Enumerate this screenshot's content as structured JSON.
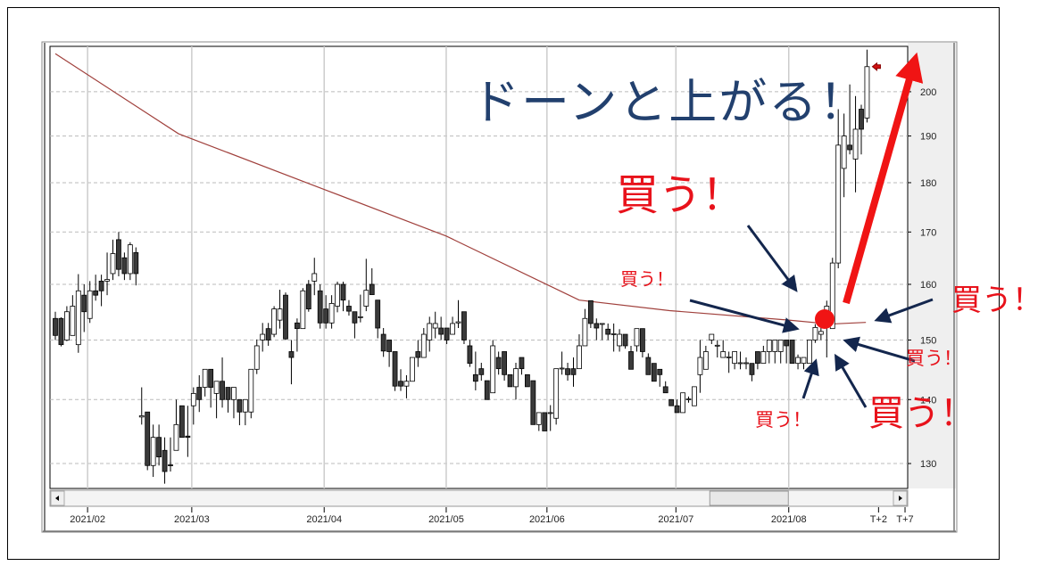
{
  "annotations": {
    "headline": "ドーンと上がる！",
    "buy_labels": [
      "買う！",
      "買う！",
      "買う！",
      "買う！",
      "買う！",
      "買う！"
    ]
  },
  "colors": {
    "headline": "#22406e",
    "buy_text": "#e8121b",
    "arrows_navy": "#13264d",
    "big_arrow": "#f01414",
    "marker_dot": "#f01414",
    "moving_average": "#a0403c",
    "candle_up": "#ffffff",
    "candle_down": "#3a3a3a"
  },
  "chart_data": {
    "type": "candlestick",
    "title": "",
    "y_scale": "log",
    "ylim": [
      126.3,
      210.8
    ],
    "y_ticks": [
      130,
      140,
      150,
      160,
      170,
      180,
      190,
      200
    ],
    "y_axis_side": "right",
    "grid": {
      "horizontal": "dashed",
      "vertical": "solid-at-month-ticks"
    },
    "x_ticks": [
      {
        "label": "2021/02",
        "index": 5.6
      },
      {
        "label": "2021/03",
        "index": 23.7
      },
      {
        "label": "2021/04",
        "index": 46.7
      },
      {
        "label": "2021/05",
        "index": 67.9
      },
      {
        "label": "2021/06",
        "index": 85.4
      },
      {
        "label": "2021/07",
        "index": 107.8
      },
      {
        "label": "2021/08",
        "index": 127.4
      },
      {
        "label": "T+2",
        "index": 143.0
      },
      {
        "label": "T+7",
        "index": 147.6
      }
    ],
    "ohlc_fields": [
      "open",
      "high",
      "low",
      "close"
    ],
    "candles": [
      [
        153.8,
        155,
        150,
        150.8
      ],
      [
        153.8,
        154,
        148.9,
        149.2
      ],
      [
        150,
        156,
        149.8,
        155
      ],
      [
        150.8,
        158,
        150.8,
        156
      ],
      [
        149.2,
        161.9,
        147.8,
        158.8
      ],
      [
        158,
        160,
        151.4,
        155
      ],
      [
        153.8,
        160.6,
        153,
        158.8
      ],
      [
        158.8,
        161.8,
        157,
        158
      ],
      [
        160.6,
        161.8,
        156,
        158.8
      ],
      [
        160.6,
        166,
        158,
        160.9
      ],
      [
        162,
        168.5,
        160.8,
        165.8
      ],
      [
        168.5,
        170,
        161.5,
        162.8
      ],
      [
        165,
        166,
        160.8,
        162
      ],
      [
        162,
        168,
        160.8,
        167.5
      ],
      [
        166,
        167,
        159.8,
        162
      ],
      [
        137.2,
        142,
        136,
        137.4
      ],
      [
        138,
        138,
        129,
        129.7
      ],
      [
        129.7,
        136,
        128,
        134
      ],
      [
        134,
        136,
        129.7,
        131
      ],
      [
        132,
        134,
        127,
        128.8
      ],
      [
        129.8,
        134,
        128.8,
        129.7
      ],
      [
        132,
        140,
        132,
        136
      ],
      [
        139,
        139,
        134,
        134
      ],
      [
        134.2,
        139,
        131,
        134
      ],
      [
        139,
        142,
        136,
        141
      ],
      [
        142,
        144,
        138,
        140
      ],
      [
        142,
        145,
        140.5,
        145
      ],
      [
        145,
        145,
        138.7,
        142
      ],
      [
        141,
        143,
        137,
        143
      ],
      [
        143,
        147,
        138.7,
        140
      ],
      [
        142,
        142,
        137.9,
        140
      ],
      [
        140,
        142,
        137,
        142
      ],
      [
        140,
        140,
        135.9,
        138
      ],
      [
        138,
        140,
        135.9,
        140
      ],
      [
        138,
        145,
        137,
        145
      ],
      [
        145,
        150.1,
        144.2,
        149
      ],
      [
        150,
        153,
        148,
        151
      ],
      [
        152,
        153,
        149,
        150
      ],
      [
        151,
        156,
        150.5,
        155.5
      ],
      [
        153.5,
        159,
        152,
        155.5
      ],
      [
        158,
        158.5,
        150,
        150.2
      ],
      [
        148,
        150,
        142.5,
        147
      ],
      [
        153,
        153.8,
        148,
        152
      ],
      [
        152,
        159.3,
        152,
        158.8
      ],
      [
        160,
        160.8,
        155,
        155.5
      ],
      [
        160.6,
        165,
        158,
        162
      ],
      [
        158.8,
        160,
        152,
        153
      ],
      [
        155.5,
        158,
        152,
        153
      ],
      [
        153,
        158,
        152,
        156.5
      ],
      [
        156,
        160.5,
        154.9,
        160
      ],
      [
        160,
        160.5,
        155.1,
        157.1
      ],
      [
        156,
        157.1,
        154.3,
        155.1
      ],
      [
        155,
        155,
        150.3,
        153
      ],
      [
        154,
        158.1,
        153.1,
        154.1
      ],
      [
        156,
        164.8,
        155.1,
        158.9
      ],
      [
        160,
        163,
        158.1,
        158.1
      ],
      [
        157.1,
        157.1,
        150.3,
        152.1
      ],
      [
        151,
        152.1,
        147.1,
        148.1
      ],
      [
        150,
        150,
        145.4,
        148
      ],
      [
        148,
        148,
        141.4,
        142.2
      ],
      [
        143,
        145,
        141.4,
        142.2
      ],
      [
        142.2,
        144,
        140.2,
        143
      ],
      [
        143,
        147,
        143,
        147
      ],
      [
        148,
        150,
        145.4,
        147
      ],
      [
        147,
        152.1,
        147,
        151
      ],
      [
        150,
        154.1,
        148,
        152.9
      ],
      [
        152.1,
        155,
        150.3,
        152.9
      ],
      [
        152.1,
        154.1,
        150,
        151
      ],
      [
        152.1,
        152.1,
        149.3,
        150
      ],
      [
        151,
        154.1,
        151,
        152.9
      ],
      [
        153,
        157.1,
        152.1,
        153.2
      ],
      [
        155,
        155,
        149.3,
        150
      ],
      [
        149,
        150,
        145.4,
        146
      ],
      [
        144.1,
        148,
        141.5,
        143
      ],
      [
        145.1,
        146.1,
        143.1,
        144.1
      ],
      [
        143.1,
        143.1,
        140,
        140
      ],
      [
        141.1,
        150,
        141.1,
        149
      ],
      [
        147,
        148,
        144.1,
        145.1
      ],
      [
        148,
        148,
        143.1,
        144.1
      ],
      [
        144.1,
        144.1,
        142.1,
        142.1
      ],
      [
        142.1,
        146.1,
        140,
        145.1
      ],
      [
        147,
        147,
        144.1,
        145.1
      ],
      [
        144.1,
        144.1,
        142.1,
        142.1
      ],
      [
        143.1,
        143.1,
        136,
        136
      ],
      [
        136,
        137.9,
        135,
        137.9
      ],
      [
        137.9,
        137.9,
        135,
        135
      ],
      [
        137.8,
        139.1,
        135,
        137.9
      ],
      [
        137,
        145.1,
        136,
        145.1
      ],
      [
        145.1,
        148,
        144.1,
        145.2
      ],
      [
        145.1,
        146.1,
        143.1,
        144.1
      ],
      [
        145.1,
        147,
        142.1,
        144.1
      ],
      [
        145.1,
        151,
        145.1,
        149
      ],
      [
        149,
        155.5,
        149,
        153.8
      ],
      [
        157,
        157,
        152.1,
        152.9
      ],
      [
        152.9,
        153.8,
        150,
        152.1
      ],
      [
        152.9,
        152.9,
        150,
        152.9
      ],
      [
        151.9,
        152.9,
        150,
        151
      ],
      [
        151,
        152.9,
        148,
        151.1
      ],
      [
        149,
        151.9,
        148,
        151
      ],
      [
        151,
        151,
        148.5,
        149
      ],
      [
        148,
        149,
        145,
        145
      ],
      [
        149,
        152,
        148,
        152
      ],
      [
        152,
        152,
        147,
        148
      ],
      [
        147,
        147.7,
        144.1,
        144.1
      ],
      [
        146,
        146,
        143,
        143
      ],
      [
        145,
        145,
        142.1,
        144.1
      ],
      [
        142.1,
        143,
        141.1,
        141.1
      ],
      [
        140,
        140,
        139,
        139
      ],
      [
        139,
        140,
        137.9,
        137.9
      ],
      [
        137.9,
        141.1,
        137.9,
        141.1
      ],
      [
        140,
        140.5,
        139.5,
        140.1
      ],
      [
        139,
        142.1,
        139,
        142.1
      ],
      [
        144.1,
        150,
        141.1,
        147
      ],
      [
        145,
        149,
        145,
        148
      ],
      [
        150,
        151,
        149.3,
        151
      ],
      [
        149,
        150,
        147,
        149.1
      ],
      [
        147,
        150,
        147,
        148
      ],
      [
        147,
        148,
        144.4,
        147.1
      ],
      [
        146,
        148,
        145,
        148
      ],
      [
        146,
        148,
        145,
        146.1
      ],
      [
        146,
        147,
        145,
        146.1
      ],
      [
        146,
        146,
        143,
        144.1
      ],
      [
        148,
        148,
        145,
        146
      ],
      [
        146,
        149,
        146,
        148
      ],
      [
        148,
        150,
        146,
        150
      ],
      [
        148,
        150,
        146,
        150
      ],
      [
        148,
        150,
        146,
        150
      ],
      [
        150,
        150,
        146,
        149
      ],
      [
        150,
        150,
        146,
        146
      ],
      [
        146,
        147.5,
        145,
        147
      ],
      [
        146,
        147,
        145,
        147
      ],
      [
        146,
        150,
        146,
        150
      ],
      [
        150,
        152.8,
        149.5,
        152.2
      ],
      [
        151,
        152.2,
        150,
        151.5
      ],
      [
        154.5,
        157,
        147,
        156
      ],
      [
        152,
        165,
        152,
        164
      ],
      [
        164,
        196,
        163,
        188
      ],
      [
        183,
        195,
        177,
        190
      ],
      [
        188,
        201.7,
        186,
        187
      ],
      [
        185,
        199,
        178,
        191.5
      ],
      [
        196,
        197,
        186,
        191.5
      ],
      [
        194,
        210,
        193,
        205.9
      ]
    ],
    "moving_average": [
      {
        "index": 0,
        "value": 209
      },
      {
        "index": 21.4,
        "value": 190.5
      },
      {
        "index": 46.7,
        "value": 178.6
      },
      {
        "index": 67.9,
        "value": 169.2
      },
      {
        "index": 91,
        "value": 157.1
      },
      {
        "index": 106.7,
        "value": 155.2
      },
      {
        "index": 127.4,
        "value": 153.5
      },
      {
        "index": 134.6,
        "value": 152.8
      },
      {
        "index": 140.8,
        "value": 153.1
      }
    ],
    "last_price_marker": 205.9,
    "scrollbar_position": 0.86
  }
}
